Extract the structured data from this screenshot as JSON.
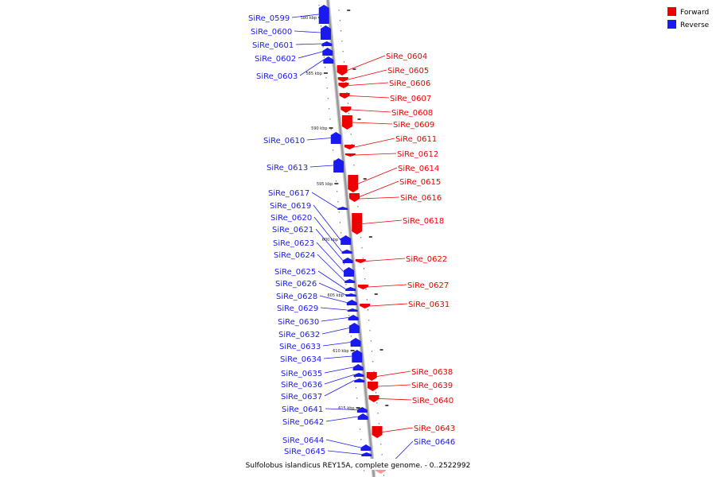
{
  "colors": {
    "forward": "#ee0000",
    "reverse": "#1a1af0",
    "axis": "#9a9a9a"
  },
  "legend": {
    "forward": "Forward",
    "reverse": "Reverse"
  },
  "caption": "Sulfolobus islandicus REY15A, complete genome. - 0..2522992",
  "ticks": [
    "580 kbp",
    "585 kbp",
    "590 kbp",
    "595 kbp",
    "600 kbp",
    "605 kbp",
    "610 kbp",
    "615 kbp"
  ],
  "reverse_genes": [
    "SiRe_0599",
    "SiRe_0600",
    "SiRe_0601",
    "SiRe_0602",
    "SiRe_0603",
    "SiRe_0610",
    "SiRe_0613",
    "SiRe_0617",
    "SiRe_0619",
    "SiRe_0620",
    "SiRe_0621",
    "SiRe_0623",
    "SiRe_0624",
    "SiRe_0625",
    "SiRe_0626",
    "SiRe_0628",
    "SiRe_0629",
    "SiRe_0630",
    "SiRe_0632",
    "SiRe_0633",
    "SiRe_0634",
    "SiRe_0635",
    "SiRe_0636",
    "SiRe_0637",
    "SiRe_0641",
    "SiRe_0642",
    "SiRe_0644",
    "SiRe_0645"
  ],
  "forward_genes": [
    "SiRe_0604",
    "SiRe_0605",
    "SiRe_0606",
    "SiRe_0607",
    "SiRe_0608",
    "SiRe_0609",
    "SiRe_0611",
    "SiRe_0612",
    "SiRe_0614",
    "SiRe_0615",
    "SiRe_0616",
    "SiRe_0618",
    "SiRe_0622",
    "SiRe_0627",
    "SiRe_0631",
    "SiRe_0638",
    "SiRe_0639",
    "SiRe_0640",
    "SiRe_0643",
    "SiRe_0646"
  ]
}
